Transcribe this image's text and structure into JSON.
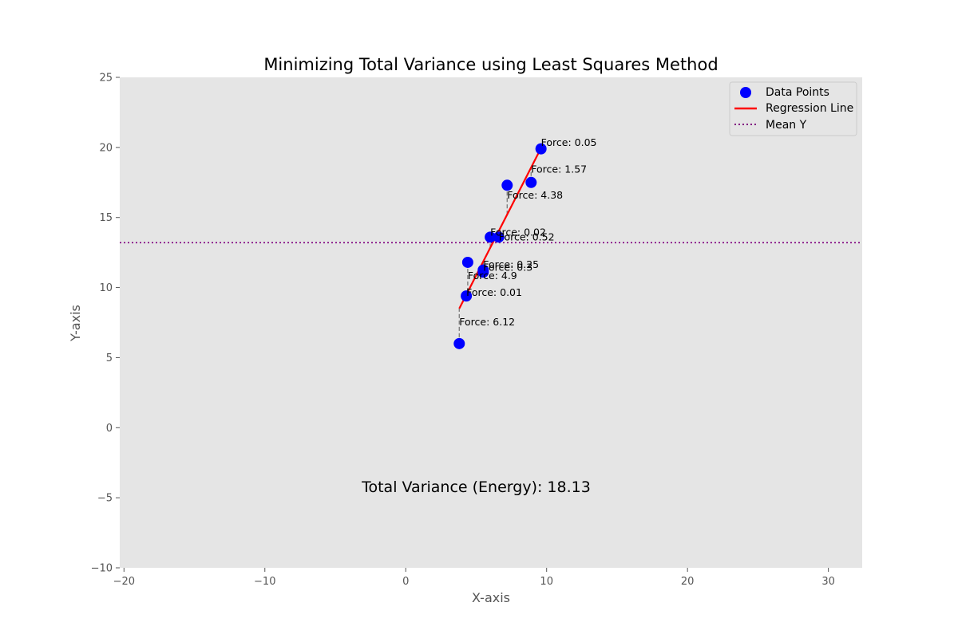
{
  "chart_data": {
    "type": "scatter",
    "title": "Minimizing Total Variance using Least Squares Method",
    "xlabel": "X-axis",
    "ylabel": "Y-axis",
    "xlim": [
      -20.3,
      32.4
    ],
    "ylim": [
      -10,
      25
    ],
    "x_ticks": [
      -20,
      -10,
      0,
      10,
      20,
      30
    ],
    "y_ticks": [
      -10,
      -5,
      0,
      5,
      10,
      15,
      20,
      25
    ],
    "x_tick_labels": [
      "−20",
      "−10",
      "0",
      "10",
      "20",
      "30"
    ],
    "y_tick_labels": [
      "−10",
      "−5",
      "0",
      "5",
      "10",
      "15",
      "20",
      "25"
    ],
    "grid": false,
    "legend_position": "top-right",
    "series": [
      {
        "name": "Data Points",
        "kind": "scatter",
        "color": "#0000ff",
        "points": [
          {
            "x": 3.8,
            "y": 6.0
          },
          {
            "x": 4.3,
            "y": 9.4
          },
          {
            "x": 4.4,
            "y": 11.8
          },
          {
            "x": 5.5,
            "y": 11.1
          },
          {
            "x": 5.5,
            "y": 11.25
          },
          {
            "x": 6.0,
            "y": 13.6
          },
          {
            "x": 6.6,
            "y": 13.6
          },
          {
            "x": 7.2,
            "y": 17.3
          },
          {
            "x": 8.9,
            "y": 17.5
          },
          {
            "x": 9.6,
            "y": 19.9
          }
        ]
      },
      {
        "name": "Regression Line",
        "kind": "line",
        "color": "#ff0000",
        "points": [
          {
            "x": 3.8,
            "y": 8.5
          },
          {
            "x": 9.6,
            "y": 19.95
          }
        ]
      },
      {
        "name": "Mean Y",
        "kind": "hline",
        "color": "#800080",
        "y": 13.2
      }
    ],
    "residual_labels": [
      {
        "text": "Force: 6.12",
        "x": 3.8,
        "y": 7.3
      },
      {
        "text": "Force: 0.01",
        "x": 4.3,
        "y": 9.4
      },
      {
        "text": "Force: 4.9",
        "x": 4.4,
        "y": 10.6
      },
      {
        "text": "Force: 0.3",
        "x": 5.5,
        "y": 11.2
      },
      {
        "text": "Force: 0.25",
        "x": 5.5,
        "y": 11.4
      },
      {
        "text": "Force: 0.02",
        "x": 6.0,
        "y": 13.7
      },
      {
        "text": "Force: 0.52",
        "x": 6.6,
        "y": 13.35
      },
      {
        "text": "Force: 4.38",
        "x": 7.2,
        "y": 16.35
      },
      {
        "text": "Force: 1.57",
        "x": 8.9,
        "y": 18.2
      },
      {
        "text": "Force: 0.05",
        "x": 9.6,
        "y": 20.1
      }
    ],
    "residual_color": "#808080",
    "annotation": {
      "text": "Total Variance (Energy): 18.13",
      "x": 5.0,
      "y": -4.6
    }
  }
}
